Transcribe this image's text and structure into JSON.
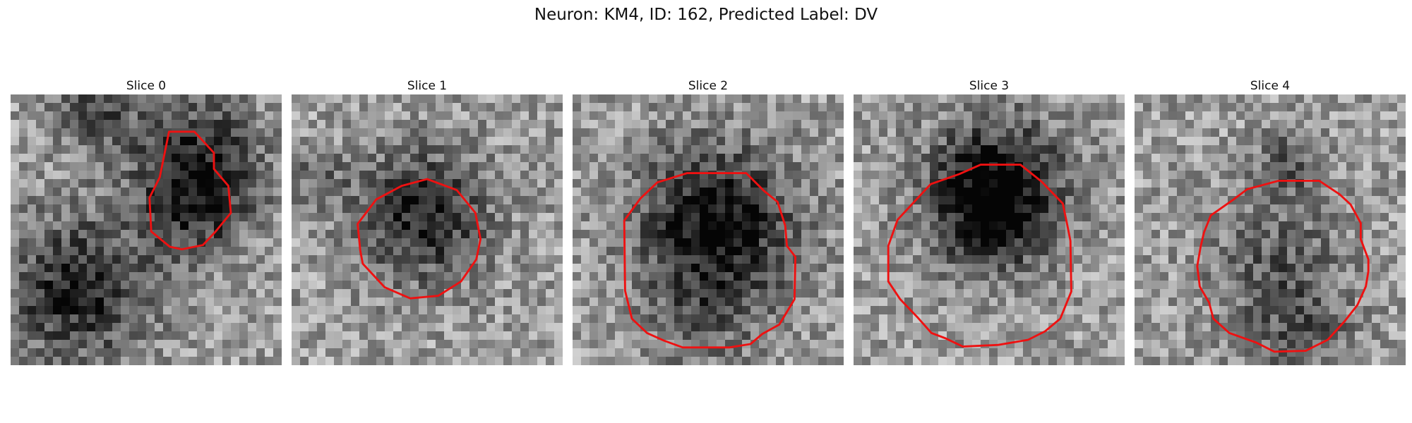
{
  "figure": {
    "title": "Neuron: KM4, ID: 162, Predicted Label: DV",
    "contour_color": "#ee1111",
    "grid_size": 32,
    "panels": [
      {
        "title": "Slice 0",
        "seed": 11,
        "blobs": [
          [
            8,
            23,
            9,
            0.8
          ],
          [
            10,
            2,
            5,
            0.55
          ],
          [
            22,
            8,
            8,
            0.75
          ],
          [
            22,
            14,
            6,
            0.45
          ]
        ],
        "contour": [
          [
            18.7,
            4.4
          ],
          [
            21.7,
            4.4
          ],
          [
            24,
            6.9
          ],
          [
            24,
            8.8
          ],
          [
            25.7,
            10.8
          ],
          [
            26,
            14
          ],
          [
            24.2,
            16.2
          ],
          [
            22.7,
            17.8
          ],
          [
            20.2,
            18.3
          ],
          [
            18.8,
            18
          ],
          [
            16.6,
            16.2
          ],
          [
            16.4,
            12.2
          ],
          [
            17.6,
            9.8
          ]
        ]
      },
      {
        "title": "Slice 1",
        "seed": 23,
        "blobs": [
          [
            15.5,
            14.3,
            8,
            0.8
          ],
          [
            3,
            10,
            4,
            0.3
          ]
        ],
        "contour": [
          [
            13,
            10.8
          ],
          [
            16,
            10
          ],
          [
            19.5,
            11.3
          ],
          [
            21.7,
            14
          ],
          [
            22.3,
            17.1
          ],
          [
            21.8,
            19.5
          ],
          [
            20,
            22.1
          ],
          [
            17.3,
            23.8
          ],
          [
            14,
            24.1
          ],
          [
            11,
            22.8
          ],
          [
            8.4,
            20
          ],
          [
            8.1,
            18.4
          ],
          [
            7.8,
            15.3
          ],
          [
            10,
            12.4
          ]
        ]
      },
      {
        "title": "Slice 2",
        "seed": 37,
        "blobs": [
          [
            17,
            15,
            9.5,
            0.95
          ],
          [
            16,
            26,
            8,
            0.3
          ]
        ],
        "contour": [
          [
            10,
            10.4
          ],
          [
            13.5,
            9.3
          ],
          [
            20.5,
            9.3
          ],
          [
            22.6,
            11.4
          ],
          [
            24.2,
            12.7
          ],
          [
            25.1,
            15.5
          ],
          [
            25.3,
            17.9
          ],
          [
            26.3,
            19.2
          ],
          [
            26.2,
            24.2
          ],
          [
            24.4,
            27.2
          ],
          [
            22.4,
            28.3
          ],
          [
            21,
            29.5
          ],
          [
            18.5,
            29.9
          ],
          [
            13,
            29.9
          ],
          [
            10.8,
            29.1
          ],
          [
            8.8,
            28.2
          ],
          [
            7,
            26.5
          ],
          [
            6.2,
            23.2
          ],
          [
            6.1,
            14.9
          ],
          [
            8,
            12.3
          ]
        ]
      },
      {
        "title": "Slice 3",
        "seed": 51,
        "blobs": [
          [
            17,
            11,
            8.5,
            1.0
          ],
          [
            16,
            16,
            6,
            0.4
          ]
        ],
        "contour": [
          [
            12.5,
            9.4
          ],
          [
            15,
            8.3
          ],
          [
            19.7,
            8.3
          ],
          [
            22.2,
            10.3
          ],
          [
            24.7,
            12.9
          ],
          [
            25.2,
            15.3
          ],
          [
            25.6,
            17.3
          ],
          [
            25.7,
            23.3
          ],
          [
            24.4,
            26.5
          ],
          [
            22.6,
            28
          ],
          [
            20.6,
            29
          ],
          [
            17.1,
            29.6
          ],
          [
            12.9,
            29.8
          ],
          [
            10.8,
            28.8
          ],
          [
            9.2,
            28.2
          ],
          [
            7.6,
            26.4
          ],
          [
            5.5,
            24.2
          ],
          [
            4.1,
            22.1
          ],
          [
            4.1,
            17.9
          ],
          [
            5.2,
            14.8
          ],
          [
            9.1,
            10.6
          ]
        ]
      },
      {
        "title": "Slice 4",
        "seed": 67,
        "blobs": [
          [
            17,
            21,
            8.5,
            0.45
          ],
          [
            18,
            8,
            4,
            0.5
          ],
          [
            20,
            29,
            5,
            0.35
          ]
        ],
        "contour": [
          [
            17,
            10.2
          ],
          [
            21.8,
            10.2
          ],
          [
            24.2,
            11.8
          ],
          [
            25.5,
            13
          ],
          [
            26.7,
            15.2
          ],
          [
            26.7,
            17.1
          ],
          [
            27.6,
            19.5
          ],
          [
            27.6,
            20.9
          ],
          [
            27.3,
            22.7
          ],
          [
            26.3,
            24.9
          ],
          [
            24.8,
            26.8
          ],
          [
            22.8,
            29
          ],
          [
            20.2,
            30.3
          ],
          [
            16.5,
            30.4
          ],
          [
            14.3,
            29.3
          ],
          [
            11.2,
            28.2
          ],
          [
            9.3,
            26.5
          ],
          [
            8.8,
            24.6
          ],
          [
            7.7,
            22.7
          ],
          [
            7.4,
            20.3
          ],
          [
            7.8,
            18
          ],
          [
            8.2,
            16.3
          ],
          [
            9,
            14.3
          ],
          [
            11.7,
            12.4
          ],
          [
            13.3,
            11.2
          ]
        ]
      }
    ]
  }
}
